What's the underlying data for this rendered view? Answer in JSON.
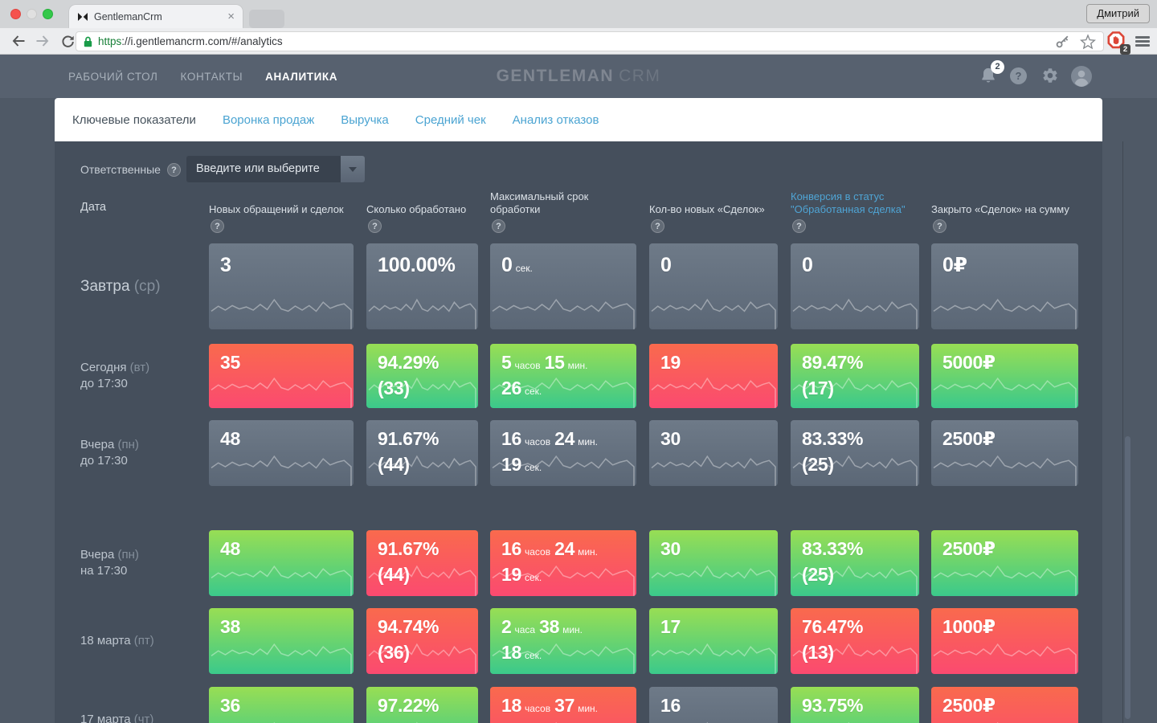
{
  "glyphs": {
    "help": "?",
    "close": "×"
  },
  "browser": {
    "tab_title": "GentlemanCrm",
    "url_scheme": "https",
    "url_rest": "://i.gentlemancrm.com/#/analytics",
    "profile_button": "Дмитрий",
    "extension_badge": "2"
  },
  "nav": {
    "items": [
      "РАБОЧИЙ СТОЛ",
      "КОНТАКТЫ",
      "АНАЛИТИКА"
    ],
    "active_index": 2,
    "logo": {
      "primary": "GENTLEMAN",
      "secondary": "CRM"
    },
    "notification_count": "2"
  },
  "tabs": {
    "items": [
      "Ключевые показатели",
      "Воронка продаж",
      "Выручка",
      "Средний чек",
      "Анализ отказов"
    ],
    "active_index": 0
  },
  "filter": {
    "label": "Ответственные",
    "placeholder": "Введите или выберите"
  },
  "table": {
    "date_header": "Дата",
    "columns": [
      {
        "label": "Новых обращений и сделок",
        "accent": false,
        "wrap": false
      },
      {
        "label": "Сколько обработано",
        "accent": false,
        "wrap": false
      },
      {
        "label": "Максимальный срок обработки",
        "accent": false,
        "wrap": true
      },
      {
        "label": "Кол-во новых «Сделок»",
        "accent": false,
        "wrap": false
      },
      {
        "label": "Конверсия в статус \"Обработанная сделка\"",
        "accent": true,
        "wrap": true
      },
      {
        "label": "Закрыто «Сделок» на сумму",
        "accent": false,
        "wrap": false
      }
    ],
    "rows": [
      {
        "date": {
          "main": "Завтра",
          "paren": "(ср)",
          "line2": ""
        },
        "tall": true,
        "cells": [
          {
            "c": "gray",
            "lines": [
              [
                {
                  "t": "3"
                }
              ]
            ]
          },
          {
            "c": "gray",
            "lines": [
              [
                {
                  "t": "100.00%"
                }
              ]
            ]
          },
          {
            "c": "gray",
            "lines": [
              [
                {
                  "t": "0"
                },
                {
                  "t": "сек.",
                  "s": 1
                }
              ]
            ]
          },
          {
            "c": "gray",
            "lines": [
              [
                {
                  "t": "0"
                }
              ]
            ]
          },
          {
            "c": "gray",
            "lines": [
              [
                {
                  "t": "0"
                }
              ]
            ]
          },
          {
            "c": "gray",
            "lines": [
              [
                {
                  "t": "0₽"
                }
              ]
            ]
          }
        ]
      },
      {
        "date": {
          "main": "Сегодня",
          "paren": "(вт)",
          "line2": "до 17:30"
        },
        "tall": false,
        "cells": [
          {
            "c": "red",
            "lines": [
              [
                {
                  "t": "35"
                }
              ]
            ]
          },
          {
            "c": "green",
            "lines": [
              [
                {
                  "t": "94.29%"
                }
              ],
              [
                {
                  "t": "(33)"
                }
              ]
            ]
          },
          {
            "c": "green",
            "lines": [
              [
                {
                  "t": "5"
                },
                {
                  "t": "часов",
                  "s": 1
                },
                {
                  "t": "15"
                },
                {
                  "t": "мин.",
                  "s": 1
                }
              ],
              [
                {
                  "t": "26"
                },
                {
                  "t": "сек.",
                  "s": 1
                }
              ]
            ]
          },
          {
            "c": "red",
            "lines": [
              [
                {
                  "t": "19"
                }
              ]
            ]
          },
          {
            "c": "green",
            "lines": [
              [
                {
                  "t": "89.47%"
                }
              ],
              [
                {
                  "t": "(17)"
                }
              ]
            ]
          },
          {
            "c": "green",
            "lines": [
              [
                {
                  "t": "5000₽"
                }
              ]
            ]
          }
        ]
      },
      {
        "date": {
          "main": "Вчера",
          "paren": "(пн)",
          "line2": "до 17:30"
        },
        "tall": false,
        "cells": [
          {
            "c": "gray",
            "lines": [
              [
                {
                  "t": "48"
                }
              ]
            ]
          },
          {
            "c": "gray",
            "lines": [
              [
                {
                  "t": "91.67%"
                }
              ],
              [
                {
                  "t": "(44)"
                }
              ]
            ]
          },
          {
            "c": "gray",
            "lines": [
              [
                {
                  "t": "16"
                },
                {
                  "t": "часов",
                  "s": 1
                },
                {
                  "t": "24"
                },
                {
                  "t": "мин.",
                  "s": 1
                }
              ],
              [
                {
                  "t": "19"
                },
                {
                  "t": "сек.",
                  "s": 1
                }
              ]
            ]
          },
          {
            "c": "gray",
            "lines": [
              [
                {
                  "t": "30"
                }
              ]
            ]
          },
          {
            "c": "gray",
            "lines": [
              [
                {
                  "t": "83.33%"
                }
              ],
              [
                {
                  "t": "(25)"
                }
              ]
            ]
          },
          {
            "c": "gray",
            "lines": [
              [
                {
                  "t": "2500₽"
                }
              ]
            ]
          }
        ]
      },
      {
        "date": {
          "main": "Вчера",
          "paren": "(пн)",
          "line2": "на 17:30"
        },
        "tall": false,
        "cells": [
          {
            "c": "green",
            "lines": [
              [
                {
                  "t": "48"
                }
              ]
            ]
          },
          {
            "c": "red",
            "lines": [
              [
                {
                  "t": "91.67%"
                }
              ],
              [
                {
                  "t": "(44)"
                }
              ]
            ]
          },
          {
            "c": "red",
            "lines": [
              [
                {
                  "t": "16"
                },
                {
                  "t": "часов",
                  "s": 1
                },
                {
                  "t": "24"
                },
                {
                  "t": "мин.",
                  "s": 1
                }
              ],
              [
                {
                  "t": "19"
                },
                {
                  "t": "сек.",
                  "s": 1
                }
              ]
            ]
          },
          {
            "c": "green",
            "lines": [
              [
                {
                  "t": "30"
                }
              ]
            ]
          },
          {
            "c": "green",
            "lines": [
              [
                {
                  "t": "83.33%"
                }
              ],
              [
                {
                  "t": "(25)"
                }
              ]
            ]
          },
          {
            "c": "green",
            "lines": [
              [
                {
                  "t": "2500₽"
                }
              ]
            ]
          }
        ]
      },
      {
        "date": {
          "main": "18 марта",
          "paren": "(пт)",
          "line2": ""
        },
        "tall": false,
        "cells": [
          {
            "c": "green",
            "lines": [
              [
                {
                  "t": "38"
                }
              ]
            ]
          },
          {
            "c": "red",
            "lines": [
              [
                {
                  "t": "94.74%"
                }
              ],
              [
                {
                  "t": "(36)"
                }
              ]
            ]
          },
          {
            "c": "green",
            "lines": [
              [
                {
                  "t": "2"
                },
                {
                  "t": "часа",
                  "s": 1
                },
                {
                  "t": "38"
                },
                {
                  "t": "мин.",
                  "s": 1
                }
              ],
              [
                {
                  "t": "18"
                },
                {
                  "t": "сек.",
                  "s": 1
                }
              ]
            ]
          },
          {
            "c": "green",
            "lines": [
              [
                {
                  "t": "17"
                }
              ]
            ]
          },
          {
            "c": "red",
            "lines": [
              [
                {
                  "t": "76.47%"
                }
              ],
              [
                {
                  "t": "(13)"
                }
              ]
            ]
          },
          {
            "c": "red",
            "lines": [
              [
                {
                  "t": "1000₽"
                }
              ]
            ]
          }
        ]
      },
      {
        "date": {
          "main": "17 марта",
          "paren": "(чт)",
          "line2": ""
        },
        "tall": false,
        "cells": [
          {
            "c": "green",
            "lines": [
              [
                {
                  "t": "36"
                }
              ]
            ]
          },
          {
            "c": "green",
            "lines": [
              [
                {
                  "t": "97.22%"
                }
              ]
            ]
          },
          {
            "c": "red",
            "lines": [
              [
                {
                  "t": "18"
                },
                {
                  "t": "часов",
                  "s": 1
                },
                {
                  "t": "37"
                },
                {
                  "t": "мин.",
                  "s": 1
                }
              ]
            ]
          },
          {
            "c": "gray",
            "lines": [
              [
                {
                  "t": "16"
                }
              ]
            ]
          },
          {
            "c": "green",
            "lines": [
              [
                {
                  "t": "93.75%"
                }
              ]
            ]
          },
          {
            "c": "red",
            "lines": [
              [
                {
                  "t": "2500₽"
                }
              ]
            ]
          }
        ]
      }
    ]
  },
  "cell_colors": {
    "gray": {
      "top": "#6e7a88",
      "bottom": "#5b6776"
    },
    "red": {
      "top": "#f96a4d",
      "bottom": "#fb4a70"
    },
    "green": {
      "top": "#98de54",
      "bottom": "#3bc98b"
    }
  },
  "sparkline": [
    0.55,
    0.33,
    0.5,
    0.3,
    0.45,
    0.36,
    0.5,
    0.25,
    0.48,
    0.04,
    0.45,
    0.55,
    0.32,
    0.5,
    0.3,
    0.55,
    0.15,
    0.42,
    0.3,
    0.22,
    0.5
  ],
  "icons": [
    "bow-tie-favicon",
    "lock-icon",
    "key-icon",
    "star-icon",
    "stop-hand-extension-icon",
    "menu-icon",
    "bell-icon",
    "question-icon",
    "gear-icon",
    "avatar-icon",
    "dropdown-arrow-icon",
    "back-icon",
    "forward-icon",
    "refresh-icon"
  ]
}
